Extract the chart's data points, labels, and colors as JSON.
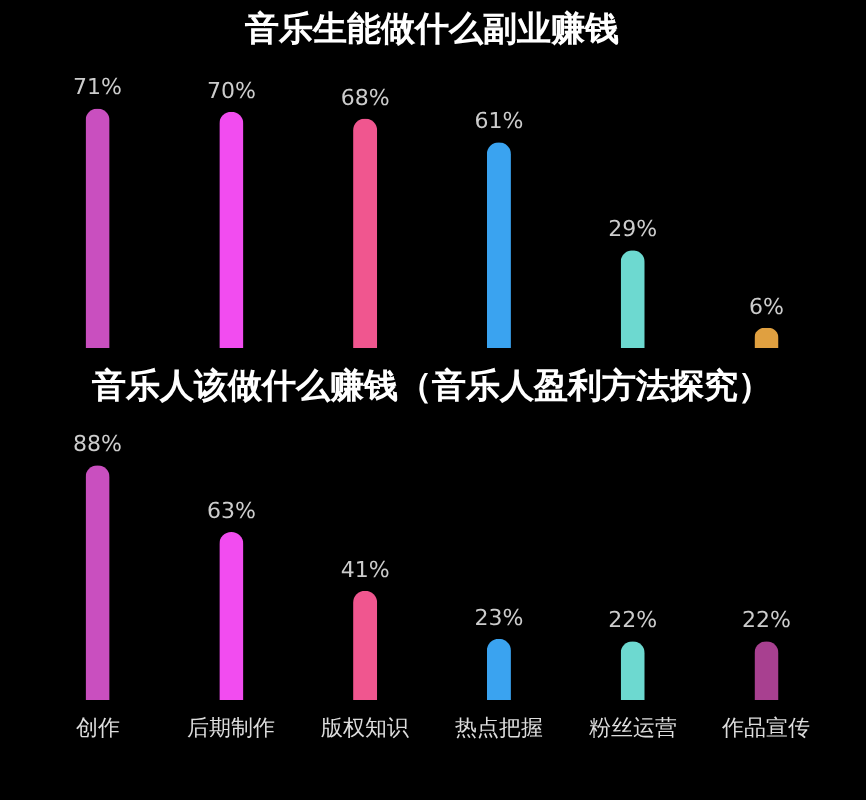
{
  "chart_data": [
    {
      "type": "bar",
      "title": "音乐生能做什么副业赚钱",
      "categories": [
        null,
        null,
        null,
        null,
        null,
        null
      ],
      "values": [
        71,
        70,
        68,
        61,
        29,
        6
      ],
      "value_labels": [
        "71%",
        "70%",
        "68%",
        "61%",
        "29%",
        "6%"
      ],
      "colors": [
        "#c94fbf",
        "#f24cf0",
        "#f0568f",
        "#3aa3f0",
        "#6dd9d0",
        "#e0a040"
      ]
    },
    {
      "type": "bar",
      "title": "音乐人该做什么赚钱（音乐人盈利方法探究）",
      "categories": [
        "创作",
        "后期制作",
        "版权知识",
        "热点把握",
        "粉丝运营",
        "作品宣传"
      ],
      "values": [
        88,
        63,
        41,
        23,
        22,
        22
      ],
      "value_labels": [
        "88%",
        "63%",
        "41%",
        "23%",
        "22%",
        "22%"
      ],
      "colors": [
        "#c94fbf",
        "#f24cf0",
        "#f0568f",
        "#3aa3f0",
        "#6dd9d0",
        "#a84090"
      ]
    }
  ]
}
